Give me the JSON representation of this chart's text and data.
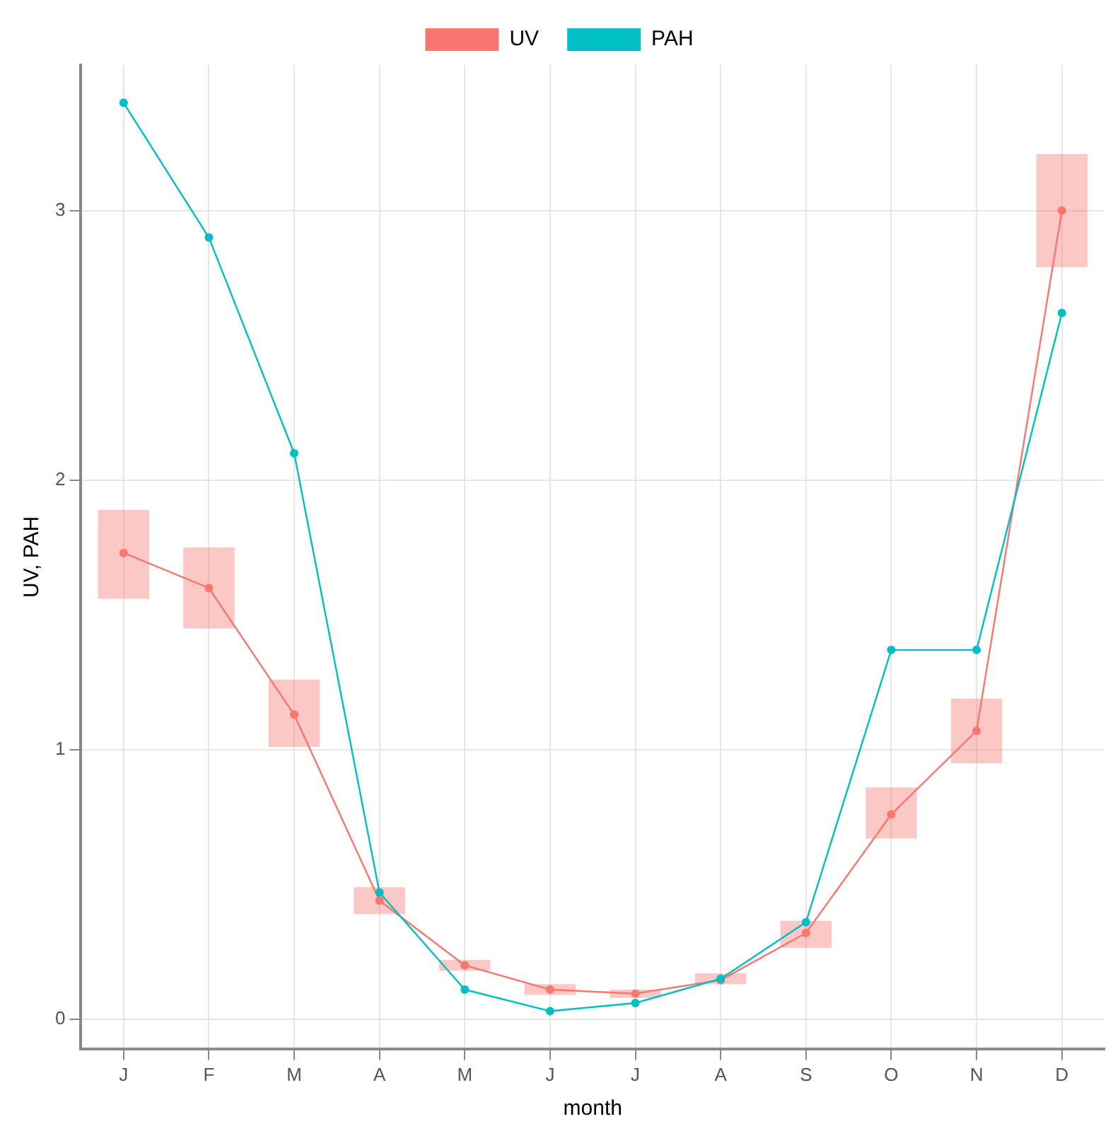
{
  "chart_data": {
    "type": "line",
    "xlabel": "month",
    "ylabel": "UV, PAH",
    "categories": [
      "J",
      "F",
      "M",
      "A",
      "M",
      "J",
      "J",
      "A",
      "S",
      "O",
      "N",
      "D"
    ],
    "series": [
      {
        "name": "UV",
        "color": "#f8766d",
        "values": [
          1.73,
          1.6,
          1.13,
          0.44,
          0.2,
          0.11,
          0.095,
          0.145,
          0.32,
          0.76,
          1.07,
          3.0
        ],
        "errors": [
          [
            1.56,
            1.89
          ],
          [
            1.45,
            1.75
          ],
          [
            1.01,
            1.26
          ],
          [
            0.39,
            0.49
          ],
          [
            0.18,
            0.22
          ],
          [
            0.09,
            0.13
          ],
          [
            0.08,
            0.11
          ],
          [
            0.13,
            0.17
          ],
          [
            0.265,
            0.365
          ],
          [
            0.67,
            0.86
          ],
          [
            0.95,
            1.19
          ],
          [
            2.79,
            3.21
          ]
        ]
      },
      {
        "name": "PAH",
        "color": "#00bfc4",
        "values": [
          3.4,
          2.9,
          2.1,
          0.47,
          0.11,
          0.03,
          0.06,
          0.15,
          0.36,
          1.37,
          1.37,
          2.62
        ]
      }
    ],
    "ylim": [
      -0.11,
      3.54
    ],
    "yticks": [
      0,
      1,
      2,
      3
    ],
    "grid": true,
    "legend": "top",
    "marker": "circle",
    "line_style": "solid"
  }
}
